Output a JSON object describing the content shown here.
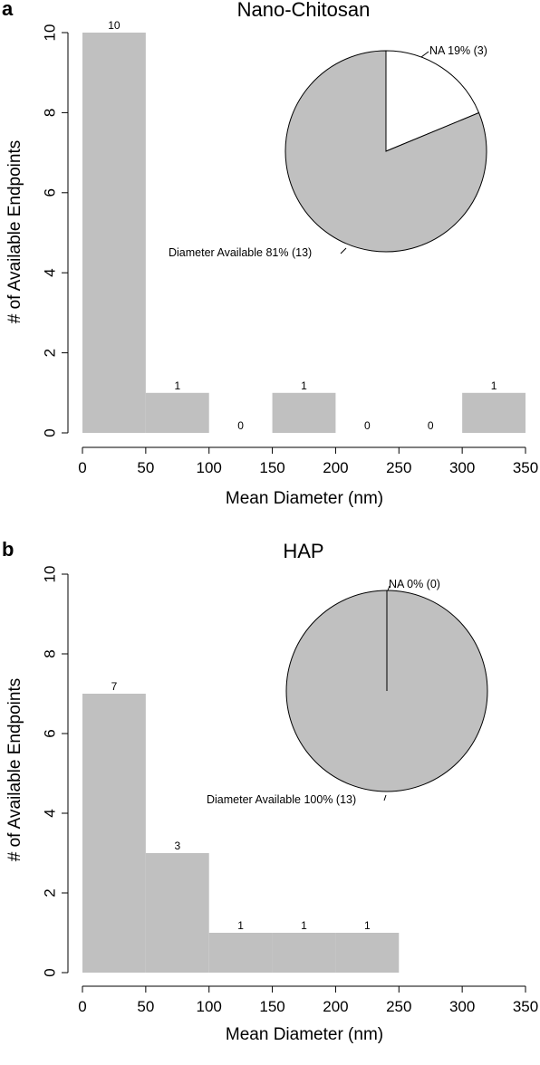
{
  "chart_data": [
    {
      "type": "bar",
      "panel_label": "a",
      "title": "Nano-Chitosan",
      "xlabel": "Mean Diameter (nm)",
      "ylabel": "# of Available Endpoints",
      "bin_edges": [
        0,
        50,
        100,
        150,
        200,
        250,
        300,
        350
      ],
      "values": [
        10,
        1,
        0,
        1,
        0,
        0,
        1
      ],
      "data_labels": [
        "10",
        "1",
        "0",
        "1",
        "0",
        "0",
        "1"
      ],
      "xlim": [
        0,
        350
      ],
      "ylim": [
        0,
        10
      ],
      "xticks": [
        0,
        50,
        100,
        150,
        200,
        250,
        300,
        350
      ],
      "yticks": [
        0,
        2,
        4,
        6,
        8,
        10
      ],
      "bar_color": "#c0c0c0",
      "grid": false,
      "inset_pie": {
        "type": "pie",
        "slices": [
          {
            "label": "NA 19% (3)",
            "value": 3,
            "color": "#ffffff"
          },
          {
            "label": "Diameter Available 81% (13)",
            "value": 13,
            "color": "#c0c0c0"
          }
        ]
      }
    },
    {
      "type": "bar",
      "panel_label": "b",
      "title": "HAP",
      "xlabel": "Mean Diameter (nm)",
      "ylabel": "# of Available Endpoints",
      "bin_edges": [
        0,
        50,
        100,
        150,
        200,
        250
      ],
      "values": [
        7,
        3,
        1,
        1,
        1
      ],
      "data_labels": [
        "7",
        "3",
        "1",
        "1",
        "1"
      ],
      "xlim": [
        0,
        350
      ],
      "ylim": [
        0,
        10
      ],
      "xticks": [
        0,
        50,
        100,
        150,
        200,
        250,
        300,
        350
      ],
      "yticks": [
        0,
        2,
        4,
        6,
        8,
        10
      ],
      "bar_color": "#c0c0c0",
      "grid": false,
      "inset_pie": {
        "type": "pie",
        "slices": [
          {
            "label": "NA 0% (0)",
            "value": 0,
            "color": "#ffffff"
          },
          {
            "label": "Diameter Available 100% (13)",
            "value": 13,
            "color": "#c0c0c0"
          }
        ]
      }
    }
  ]
}
